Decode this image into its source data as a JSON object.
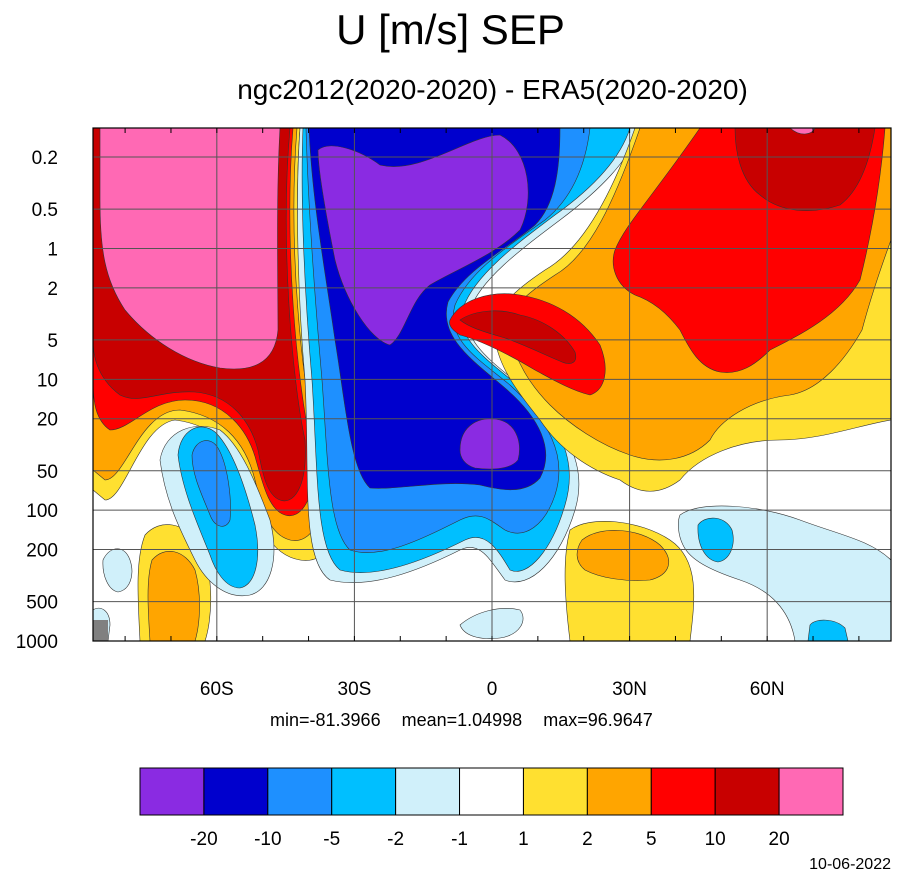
{
  "title": "U [m/s] SEP",
  "subtitle": "ngc2012(2020-2020) - ERA5(2020-2020)",
  "stats": {
    "min": "min=-81.3966",
    "mean": "mean=1.04998",
    "max": "max=96.9647"
  },
  "date": "10-06-2022",
  "chart_data": {
    "type": "heatmap",
    "y_scale": "log",
    "y_reversed": true,
    "x_ticks": [
      {
        "value": -60,
        "label": "60S"
      },
      {
        "value": -30,
        "label": "30S"
      },
      {
        "value": 0,
        "label": "0"
      },
      {
        "value": 30,
        "label": "30N"
      },
      {
        "value": 60,
        "label": "60N"
      }
    ],
    "y_ticks": [
      {
        "value": 0.2,
        "label": "0.2"
      },
      {
        "value": 0.5,
        "label": "0.5"
      },
      {
        "value": 1,
        "label": "1"
      },
      {
        "value": 2,
        "label": "2"
      },
      {
        "value": 5,
        "label": "5"
      },
      {
        "value": 10,
        "label": "10"
      },
      {
        "value": 20,
        "label": "20"
      },
      {
        "value": 50,
        "label": "50"
      },
      {
        "value": 100,
        "label": "100"
      },
      {
        "value": 200,
        "label": "200"
      },
      {
        "value": 500,
        "label": "500"
      },
      {
        "value": 1000,
        "label": "1000"
      }
    ],
    "xlim": [
      -87,
      87
    ],
    "ylim": [
      0.12,
      1000
    ],
    "contour_levels": [
      "-20",
      "-10",
      "-5",
      "-2",
      "-1",
      "1",
      "2",
      "5",
      "10",
      "20"
    ],
    "colorbar_colors": [
      "#8a2be2",
      "#0000cd",
      "#1e90ff",
      "#00bfff",
      "#d0f0fa",
      "#ffffff",
      "#ffe030",
      "#ffa500",
      "#ff0000",
      "#c80000",
      "#ff69b4"
    ],
    "grid": true
  }
}
